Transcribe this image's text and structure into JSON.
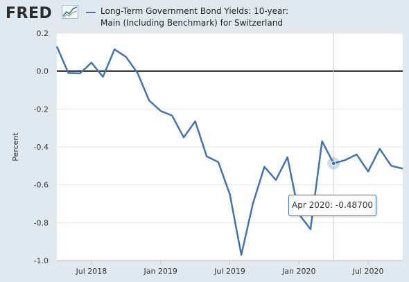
{
  "brand": {
    "logo_text": "FRED",
    "logo_icon": "fred-graph-icon"
  },
  "legend": {
    "label": "Long-Term Government Bond Yields: 10-year: Main (Including Benchmark) for Switzerland"
  },
  "tooltip": {
    "date": "Apr 2020",
    "separator": ": ",
    "value": "-0.48700"
  },
  "colors": {
    "series": "#4572a7",
    "background": "#e1e9f0",
    "plot": "#ffffff",
    "zero_line": "#000000"
  },
  "chart_data": {
    "type": "line",
    "title": "",
    "xlabel": "",
    "ylabel": "Percent",
    "ylim": [
      -1.0,
      0.2
    ],
    "yticks": [
      "0.2",
      "0.0",
      "-0.2",
      "-0.4",
      "-0.6",
      "-0.8",
      "-1.0"
    ],
    "ytick_values": [
      0.2,
      0.0,
      -0.2,
      -0.4,
      -0.6,
      -0.8,
      -1.0
    ],
    "xlim": [
      "2018-04",
      "2020-10"
    ],
    "xticks": [
      "Jul 2018",
      "Jan 2019",
      "Jul 2019",
      "Jan 2020",
      "Jul 2020"
    ],
    "xtick_values": [
      "2018-07",
      "2019-01",
      "2019-07",
      "2020-01",
      "2020-07"
    ],
    "grid": "horizontal",
    "series": [
      {
        "name": "Long-Term Government Bond Yields: 10-year: Main (Including Benchmark) for Switzerland",
        "x": [
          "2018-04",
          "2018-05",
          "2018-06",
          "2018-07",
          "2018-08",
          "2018-09",
          "2018-10",
          "2018-11",
          "2018-12",
          "2019-01",
          "2019-02",
          "2019-03",
          "2019-04",
          "2019-05",
          "2019-06",
          "2019-07",
          "2019-08",
          "2019-09",
          "2019-10",
          "2019-11",
          "2019-12",
          "2020-01",
          "2020-02",
          "2020-03",
          "2020-04",
          "2020-05",
          "2020-06",
          "2020-07",
          "2020-08",
          "2020-09",
          "2020-10"
        ],
        "values": [
          0.13,
          -0.01,
          -0.012,
          0.045,
          -0.03,
          0.115,
          0.075,
          -0.01,
          -0.155,
          -0.21,
          -0.235,
          -0.35,
          -0.265,
          -0.45,
          -0.48,
          -0.65,
          -0.97,
          -0.7,
          -0.505,
          -0.575,
          -0.455,
          -0.755,
          -0.835,
          -0.37,
          -0.487,
          -0.47,
          -0.44,
          -0.53,
          -0.41,
          -0.5,
          -0.515
        ]
      }
    ],
    "highlight": {
      "x": "2020-04",
      "value": -0.487
    }
  }
}
